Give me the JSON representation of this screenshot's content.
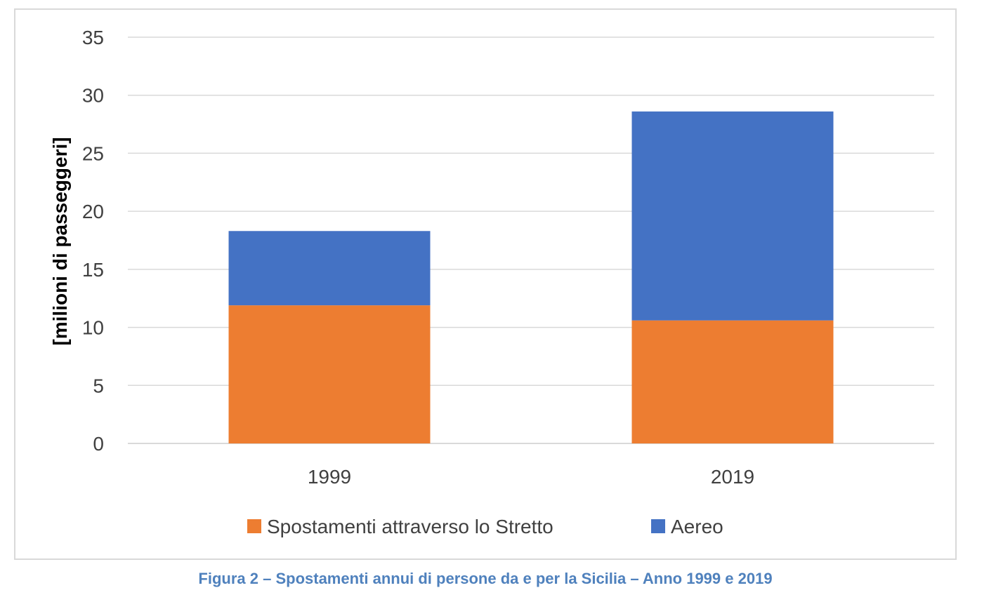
{
  "chart_data": {
    "type": "bar",
    "stacked": true,
    "categories": [
      "1999",
      "2019"
    ],
    "series": [
      {
        "name": "Spostamenti attraverso lo Stretto",
        "color": "#ed7d31",
        "values": [
          11.9,
          10.6
        ]
      },
      {
        "name": "Aereo",
        "color": "#4472c4",
        "values": [
          6.4,
          18.0
        ]
      }
    ],
    "ylabel": "[milioni di passeggeri]",
    "xlabel": "",
    "ylim": [
      0,
      35
    ],
    "yticks": [
      "0",
      "5",
      "10",
      "15",
      "20",
      "25",
      "30",
      "35"
    ],
    "grid": true,
    "legend_position": "bottom",
    "gridline_color": "#d9d9d9"
  },
  "caption": "Figura 2 – Spostamenti annui di persone da e per la Sicilia – Anno 1999 e 2019"
}
